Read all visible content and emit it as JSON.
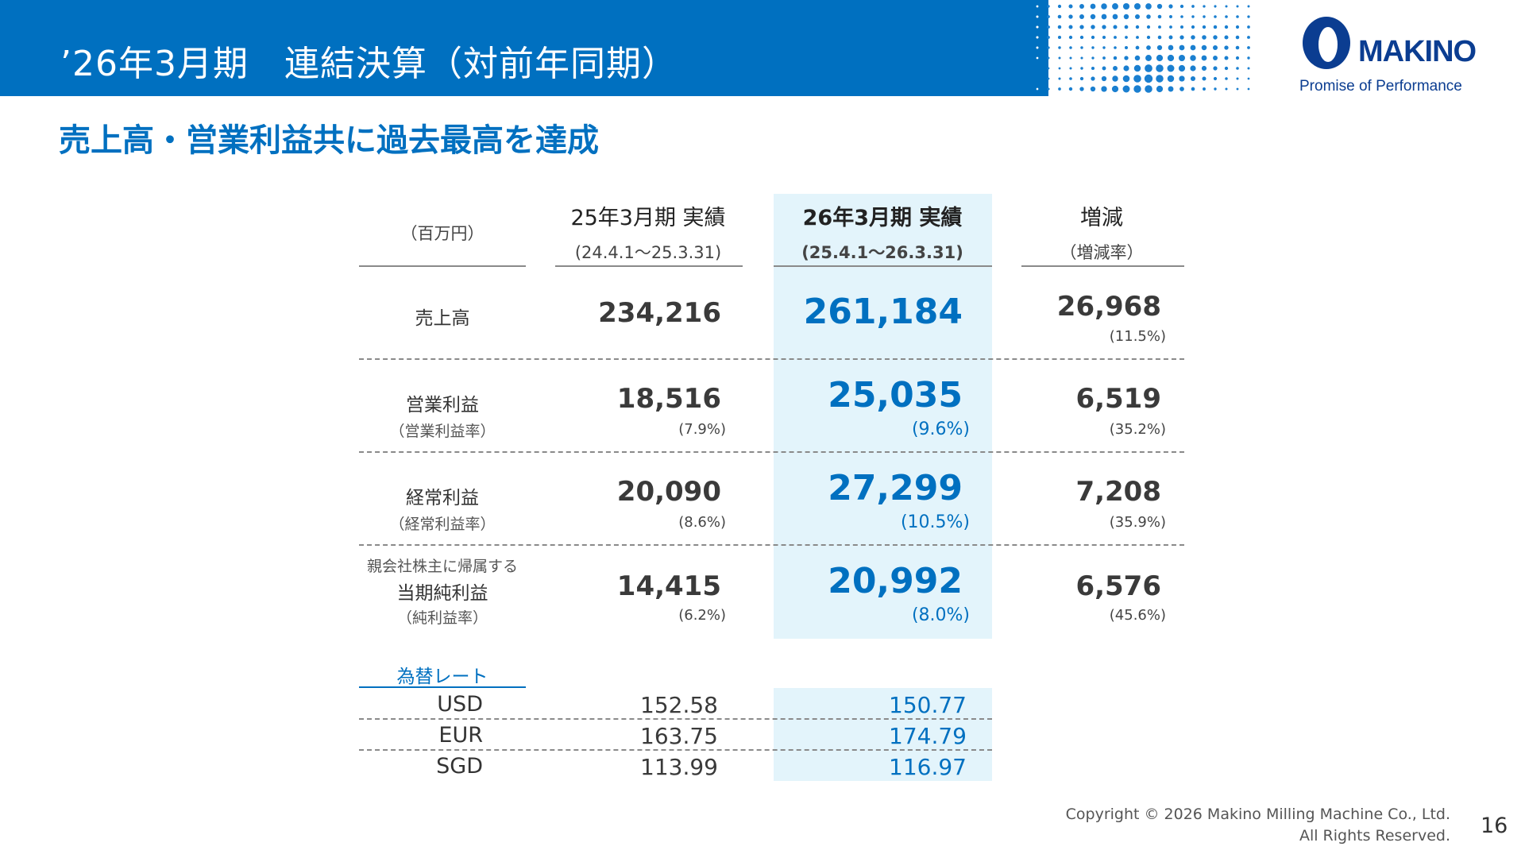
{
  "header": {
    "title": "’26年3月期　連結決算（対前年同期）"
  },
  "logo": {
    "name": "MAKINO",
    "tagline": "Promise of Performance"
  },
  "subtitle": "売上高・営業利益共に過去最高を達成",
  "table": {
    "unit": "（百万円）",
    "columns": [
      {
        "title": "25年3月期 実績",
        "period": "(24.4.1～25.3.31)"
      },
      {
        "title": "26年3月期 実績",
        "period": "(25.4.1～26.3.31)"
      },
      {
        "title": "増減",
        "period": "（増減率）"
      }
    ],
    "rows": [
      {
        "pre_label": "",
        "label": "売上高",
        "sub_label": "",
        "prev": "234,216",
        "prev_rate": "",
        "curr": "261,184",
        "curr_rate": "",
        "diff": "26,968",
        "diff_rate": "(11.5%)"
      },
      {
        "pre_label": "",
        "label": "営業利益",
        "sub_label": "（営業利益率）",
        "prev": "18,516",
        "prev_rate": "(7.9%)",
        "curr": "25,035",
        "curr_rate": "(9.6%)",
        "diff": "6,519",
        "diff_rate": "(35.2%)"
      },
      {
        "pre_label": "",
        "label": "経常利益",
        "sub_label": "（経常利益率）",
        "prev": "20,090",
        "prev_rate": "(8.6%)",
        "curr": "27,299",
        "curr_rate": "(10.5%)",
        "diff": "7,208",
        "diff_rate": "(35.9%)"
      },
      {
        "pre_label": "親会社株主に帰属する",
        "label": "当期純利益",
        "sub_label": "（純利益率）",
        "prev": "14,415",
        "prev_rate": "(6.2%)",
        "curr": "20,992",
        "curr_rate": "(8.0%)",
        "diff": "6,576",
        "diff_rate": "(45.6%)"
      }
    ]
  },
  "fx": {
    "title": "為替レート",
    "rows": [
      {
        "currency": "USD",
        "prev": "152.58",
        "curr": "150.77"
      },
      {
        "currency": "EUR",
        "prev": "163.75",
        "curr": "174.79"
      },
      {
        "currency": "SGD",
        "prev": "113.99",
        "curr": "116.97"
      }
    ]
  },
  "footer": {
    "copyright_line1": "Copyright © 2026 Makino Milling Machine Co., Ltd.",
    "copyright_line2": "All Rights Reserved.",
    "page_number": "16"
  },
  "colors": {
    "brand_blue": "#0070c0",
    "highlight": "#e3f4fb",
    "logo_navy": "#0b3d91"
  }
}
